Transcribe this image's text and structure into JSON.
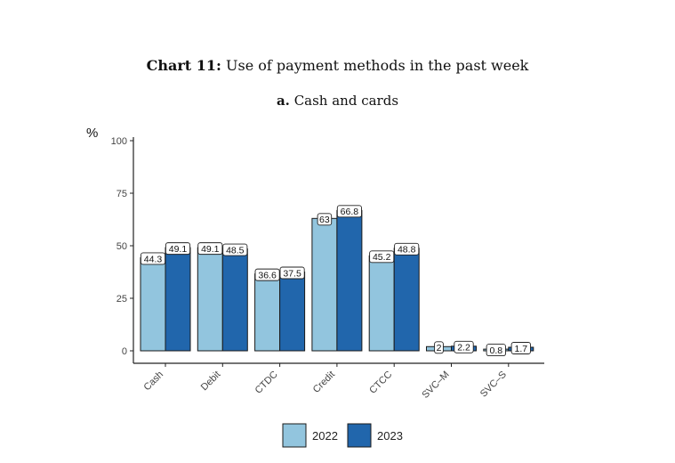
{
  "chart_title": {
    "prefix": "Chart 11:",
    "text": "Use of payment methods in the past week"
  },
  "chart_data": {
    "type": "bar",
    "title": "Chart 11: Use of payment methods in the past week",
    "subtitle_prefix": "a.",
    "subtitle": "Cash and cards",
    "ylabel": "%",
    "xlabel": "",
    "ylim": [
      0,
      100
    ],
    "yticks": [
      0,
      25,
      50,
      75,
      100
    ],
    "grid": false,
    "legend_position": "bottom",
    "categories": [
      "Cash",
      "Debit",
      "CTDC",
      "Credit",
      "CTCC",
      "SVC–M",
      "SVC–S"
    ],
    "series": [
      {
        "name": "2022",
        "color": "#92c5de",
        "values": [
          44.3,
          49.1,
          36.6,
          63,
          45.2,
          2,
          0.8
        ]
      },
      {
        "name": "2023",
        "color": "#2166ac",
        "values": [
          49.1,
          48.5,
          37.5,
          66.8,
          48.8,
          2.2,
          1.7
        ]
      }
    ]
  }
}
